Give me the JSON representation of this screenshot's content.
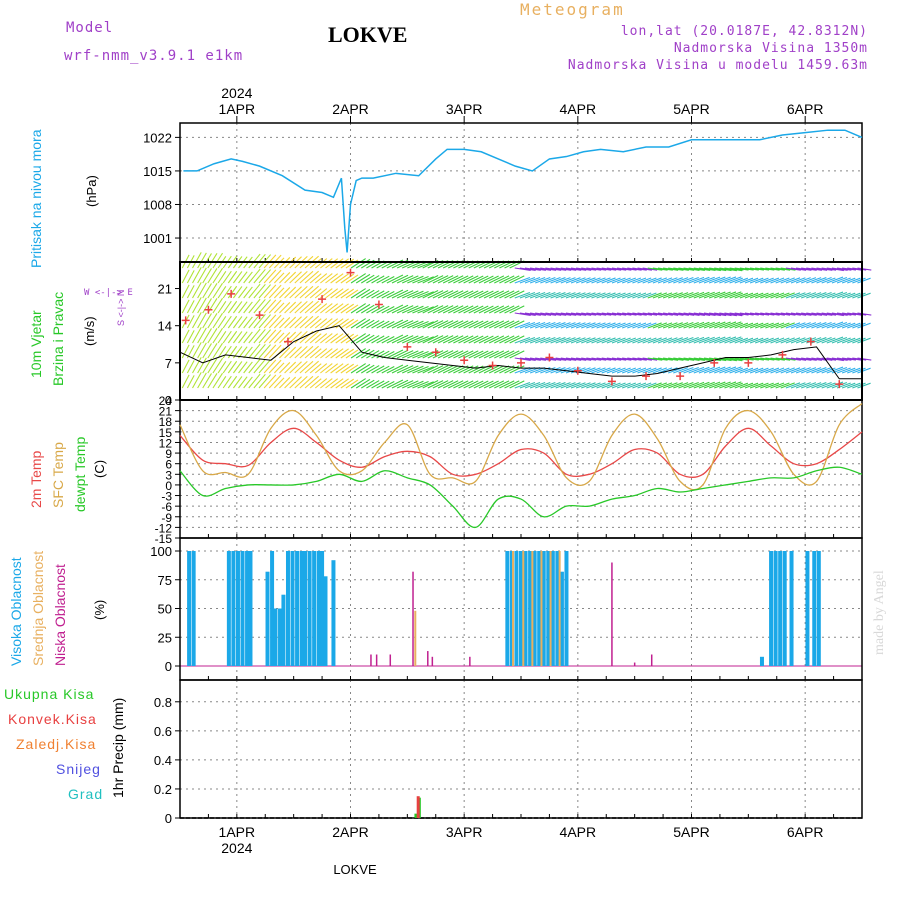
{
  "header": {
    "model_label": "Model",
    "model_value": "wrf-nmm_v3.9.1  e1km",
    "title": "LOKVE",
    "meteogram": "Meteogram",
    "lonlat": "lon,lat (20.0187E, 42.8312N)",
    "altitude": "Nadmorska Visina 1350m",
    "model_altitude": "Nadmorska Visina u modelu 1459.63m",
    "year_top": "2024",
    "year_bottom": "2024",
    "footer": "LOKVE",
    "watermark": "made by Angel"
  },
  "panels": {
    "pressure": {
      "label": "Pritisak na nivou mora",
      "unit": "(hPa)"
    },
    "wind": {
      "label1": "10m Vjetar",
      "label2": "Brzina i Pravac",
      "unit": "(m/s)",
      "compass": "W <-|-> E",
      "compass_v": "S <-|-> N"
    },
    "temp": {
      "label1": "2m Temp",
      "label2": "SFC Temp",
      "label3": "dewpt Temp",
      "unit": "(C)"
    },
    "cloud": {
      "label1": "Visoka Oblacnost",
      "label2": "Srednja Oblacnost",
      "label3": "Niska Oblacnost",
      "unit": "(%)"
    },
    "precip": {
      "unit": "1hr Precip (mm)",
      "legend": [
        "Ukupna Kisa",
        "Konvek.Kisa",
        "Zaledj.Kisa",
        "Snijeg",
        "Grad"
      ]
    }
  },
  "colors": {
    "pressure": "#1ba8e8",
    "t2m": "#e84848",
    "tsfc": "#d8a848",
    "dewpt": "#28c828",
    "high": "#1ba8e8",
    "mid": "#e8b060",
    "low": "#c02090",
    "rain": "#28c828",
    "conv": "#e84040",
    "frz": "#f08030",
    "snow": "#5050e0",
    "hail": "#20c0c0",
    "purple": "#a040c8",
    "orange": "#e8b060"
  },
  "chart_data": [
    {
      "type": "line",
      "name": "pressure",
      "x_ticks": [
        "1APR",
        "2APR",
        "3APR",
        "4APR",
        "5APR",
        "6APR"
      ],
      "x_range_days": [
        0.5,
        6.5
      ],
      "ylim": [
        996,
        1025
      ],
      "y_ticks": [
        1001,
        1008,
        1015,
        1022
      ],
      "series": [
        {
          "name": "Pritisak na nivou mora",
          "x": [
            0.53,
            0.65,
            0.8,
            0.95,
            1.05,
            1.2,
            1.4,
            1.6,
            1.75,
            1.85,
            1.92,
            1.95,
            1.97,
            2.0,
            2.05,
            2.1,
            2.2,
            2.4,
            2.6,
            2.75,
            2.85,
            3.0,
            3.15,
            3.3,
            3.45,
            3.6,
            3.75,
            3.9,
            4.05,
            4.2,
            4.4,
            4.6,
            4.8,
            5.0,
            5.3,
            5.6,
            5.8,
            6.0,
            6.2,
            6.35,
            6.5
          ],
          "values": [
            1015,
            1015,
            1016.5,
            1017.5,
            1017,
            1016,
            1014,
            1011,
            1010.5,
            1009.5,
            1013.5,
            1003,
            998,
            1008,
            1013,
            1013.5,
            1013.5,
            1014.5,
            1014,
            1017.5,
            1019.5,
            1019.5,
            1019,
            1017.5,
            1016,
            1015,
            1017.5,
            1018,
            1019,
            1019.5,
            1019,
            1020,
            1020,
            1021.5,
            1021.5,
            1021.5,
            1022.5,
            1023,
            1023.5,
            1023.5,
            1022
          ]
        }
      ]
    },
    {
      "type": "line",
      "name": "wind_speed",
      "x_range_days": [
        0.5,
        6.5
      ],
      "ylim": [
        0,
        26
      ],
      "y_ticks": [
        0,
        7,
        14,
        21
      ],
      "series": [
        {
          "name": "speed",
          "x": [
            0.5,
            0.7,
            0.9,
            1.1,
            1.3,
            1.5,
            1.7,
            1.9,
            2.1,
            2.3,
            2.5,
            2.7,
            2.9,
            3.1,
            3.3,
            3.5,
            3.7,
            3.9,
            4.1,
            4.3,
            4.5,
            4.7,
            4.9,
            5.1,
            5.3,
            5.5,
            5.7,
            5.9,
            6.1,
            6.3,
            6.5
          ],
          "values": [
            9,
            7,
            8.5,
            8,
            7.5,
            11,
            13,
            14,
            9,
            8,
            7.5,
            7,
            6.5,
            6,
            6.5,
            6,
            6,
            5.5,
            5,
            4.5,
            4.5,
            5,
            6,
            7,
            8,
            8,
            8.5,
            9.5,
            10,
            4,
            4
          ]
        },
        {
          "name": "gust_markers",
          "x": [
            0.55,
            0.75,
            0.95,
            1.2,
            1.45,
            1.75,
            2.0,
            2.25,
            2.5,
            2.75,
            3.0,
            3.25,
            3.5,
            3.75,
            4.0,
            4.3,
            4.6,
            4.9,
            5.2,
            5.5,
            5.8,
            6.05,
            6.3
          ],
          "values": [
            15,
            17,
            20,
            16,
            11,
            19,
            24,
            18,
            10,
            9,
            7.5,
            6.5,
            7,
            8,
            5.5,
            3.5,
            4.5,
            4.5,
            7,
            7,
            8.5,
            11,
            3
          ]
        }
      ]
    },
    {
      "type": "line",
      "name": "temperature",
      "x_range_days": [
        0.5,
        6.5
      ],
      "ylim": [
        -15,
        24
      ],
      "y_ticks": [
        -15,
        -12,
        -9,
        -6,
        -3,
        0,
        3,
        6,
        9,
        12,
        15,
        18,
        21,
        24
      ],
      "series": [
        {
          "name": "2m Temp",
          "x": [
            0.5,
            0.7,
            0.9,
            1.1,
            1.3,
            1.5,
            1.7,
            1.9,
            2.1,
            2.3,
            2.5,
            2.7,
            2.9,
            3.1,
            3.3,
            3.5,
            3.7,
            3.9,
            4.1,
            4.3,
            4.5,
            4.7,
            4.9,
            5.1,
            5.3,
            5.5,
            5.7,
            5.9,
            6.1,
            6.3,
            6.5
          ],
          "values": [
            14,
            7,
            6,
            5.5,
            12,
            16,
            12,
            7,
            5,
            8,
            9.5,
            8,
            3,
            3,
            6,
            10,
            9,
            3,
            3,
            6,
            10,
            9,
            3,
            3,
            11,
            16,
            11,
            6,
            6,
            10,
            15
          ]
        },
        {
          "name": "SFC Temp",
          "x": [
            0.5,
            0.7,
            0.9,
            1.1,
            1.3,
            1.5,
            1.7,
            1.9,
            2.1,
            2.3,
            2.5,
            2.7,
            2.9,
            3.1,
            3.3,
            3.5,
            3.7,
            3.9,
            4.1,
            4.3,
            4.5,
            4.7,
            4.9,
            5.1,
            5.3,
            5.5,
            5.7,
            5.9,
            6.1,
            6.3,
            6.5
          ],
          "values": [
            17,
            4,
            3.5,
            3,
            16,
            21,
            14,
            4,
            4,
            12,
            17,
            3,
            2,
            1,
            14,
            20,
            14,
            2,
            1,
            14,
            20,
            13,
            1,
            0,
            16,
            21,
            15,
            3,
            1,
            17,
            23
          ]
        },
        {
          "name": "dewpt Temp",
          "x": [
            0.5,
            0.7,
            0.9,
            1.1,
            1.3,
            1.5,
            1.7,
            1.9,
            2.1,
            2.3,
            2.5,
            2.7,
            2.9,
            3.1,
            3.3,
            3.5,
            3.7,
            3.9,
            4.1,
            4.3,
            4.5,
            4.7,
            4.9,
            5.1,
            5.3,
            5.5,
            5.7,
            5.9,
            6.1,
            6.3,
            6.5
          ],
          "values": [
            4,
            -3,
            -1,
            0,
            0,
            0,
            1,
            3,
            1,
            4,
            2,
            0,
            -6,
            -12,
            -4,
            -4,
            -9,
            -6,
            -6,
            -4,
            -3,
            -1,
            -2,
            -1,
            0,
            1,
            2,
            2,
            4,
            5,
            3
          ]
        }
      ]
    },
    {
      "type": "bar",
      "name": "cloud_cover",
      "x_range_days": [
        0.5,
        6.5
      ],
      "ylim": [
        0,
        100
      ],
      "y_ticks": [
        0,
        25,
        50,
        75,
        100
      ],
      "series": [
        {
          "name": "Visoka Oblacnost",
          "x": [
            0.58,
            0.62,
            0.93,
            0.97,
            1.01,
            1.05,
            1.09,
            1.12,
            1.27,
            1.31,
            1.34,
            1.38,
            1.41,
            1.45,
            1.49,
            1.53,
            1.57,
            1.6,
            1.64,
            1.68,
            1.72,
            1.75,
            1.78,
            1.85,
            3.38,
            3.42,
            3.46,
            3.5,
            3.54,
            3.58,
            3.62,
            3.66,
            3.7,
            3.74,
            3.78,
            3.82,
            3.86,
            3.9,
            5.62,
            5.7,
            5.74,
            5.78,
            5.82,
            5.88,
            6.02,
            6.08,
            6.12
          ],
          "values": [
            100,
            100,
            100,
            100,
            100,
            100,
            100,
            100,
            82,
            100,
            50,
            50,
            62,
            100,
            100,
            100,
            100,
            100,
            100,
            100,
            100,
            100,
            78,
            92,
            100,
            100,
            100,
            100,
            100,
            100,
            100,
            100,
            100,
            100,
            100,
            100,
            82,
            100,
            8,
            100,
            100,
            100,
            100,
            100,
            100,
            100,
            100
          ]
        },
        {
          "name": "Srednja Oblacnost",
          "x": [
            2.57,
            3.43,
            3.52,
            3.6,
            3.68,
            3.76,
            3.84
          ],
          "values": [
            48,
            100,
            100,
            100,
            100,
            100,
            100
          ]
        },
        {
          "name": "Niska Oblacnost",
          "x": [
            2.18,
            2.23,
            2.35,
            2.55,
            2.68,
            2.72,
            3.05,
            4.3,
            4.5,
            4.65
          ],
          "values": [
            10,
            10,
            10,
            82,
            13,
            8,
            8,
            90,
            3,
            10
          ]
        }
      ]
    },
    {
      "type": "bar",
      "name": "precipitation",
      "x_range_days": [
        0.5,
        6.5
      ],
      "ylim": [
        0,
        0.95
      ],
      "y_ticks": [
        0,
        0.2,
        0.4,
        0.6,
        0.8
      ],
      "series": [
        {
          "name": "Ukupna Kisa",
          "x": [
            2.58,
            2.61
          ],
          "values": [
            0.03,
            0.14
          ]
        },
        {
          "name": "Konvek.Kisa",
          "x": [
            2.6
          ],
          "values": [
            0.15
          ]
        }
      ]
    }
  ]
}
